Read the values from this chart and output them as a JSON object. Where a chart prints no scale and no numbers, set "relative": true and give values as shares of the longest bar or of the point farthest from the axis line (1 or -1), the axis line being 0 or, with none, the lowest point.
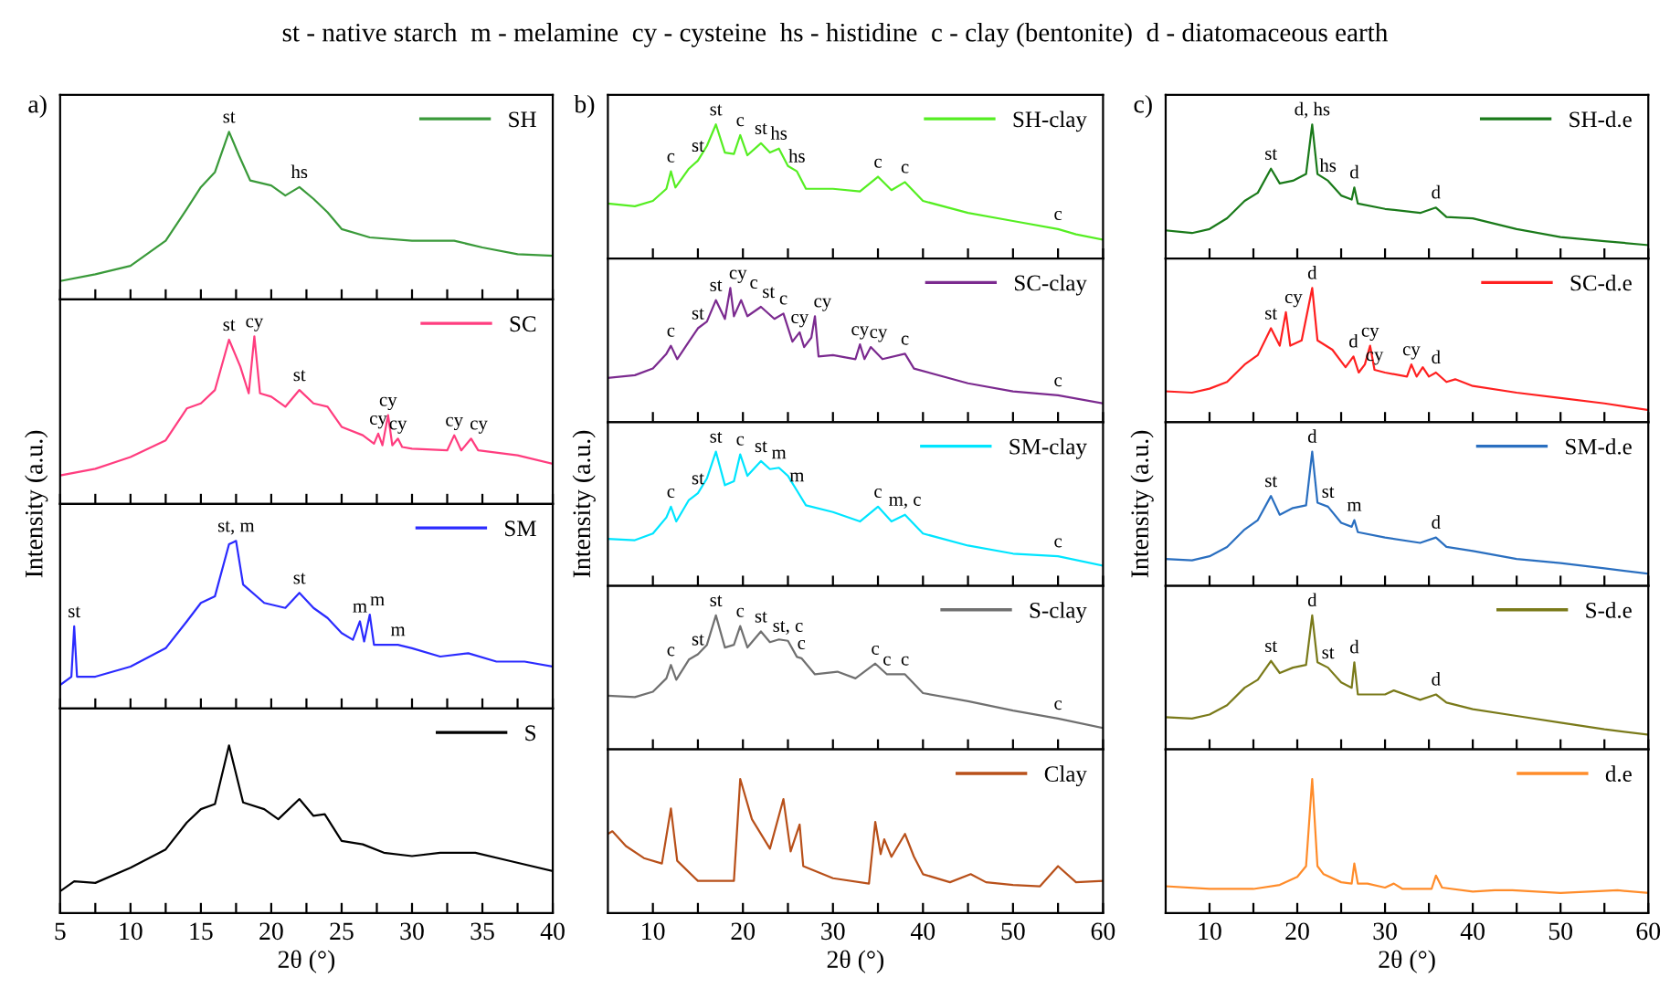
{
  "chart_data": [
    {
      "type": "line",
      "title": "st - native starch  m - melamine  cy - cysteine  hs - histidine  c - clay (bentonite)  d - diatomaceous earth",
      "relative": true,
      "tick_labels": false,
      "legend": "top right",
      "xlim": [
        5,
        40
      ],
      "xticks": [
        5,
        {
          "value": 7.5,
          "label": null
        },
        10,
        {
          "value": 12.5,
          "label": null
        },
        15,
        {
          "value": 17.5,
          "label": null
        },
        20,
        {
          "value": 22.5,
          "label": null
        },
        25,
        {
          "value": 27.5,
          "label": null
        },
        30,
        {
          "value": 32.5,
          "label": null
        },
        35,
        {
          "value": 37.5,
          "label": null
        },
        40
      ],
      "x": [
        5,
        7.5,
        10,
        12.5,
        14,
        15,
        16,
        17,
        17.7,
        18.5,
        20,
        21,
        22,
        23,
        24,
        25,
        27,
        30,
        33,
        35,
        37.5,
        40
      ],
      "series": [
        {
          "name": "SH",
          "color": "#3a9a3a",
          "values": [
            0.11,
            0.15,
            0.2,
            0.35,
            0.54,
            0.67,
            0.76,
            1.0,
            0.86,
            0.71,
            0.68,
            0.62,
            0.67,
            0.6,
            0.52,
            0.42,
            0.37,
            0.35,
            0.35,
            0.31,
            0.27,
            0.26
          ]
        }
      ],
      "annotations": [
        "a)",
        {
          "text": "st",
          "x": 17,
          "y": 1.0
        },
        {
          "text": "hs",
          "x": 22,
          "y": 0.67
        }
      ]
    },
    {
      "type": "line",
      "ylabel": "Intensity (a.u.)",
      "relative": true,
      "tick_labels": false,
      "legend": "top right",
      "xlim": [
        5,
        40
      ],
      "xticks": [
        5,
        {
          "value": 7.5,
          "label": null
        },
        10,
        {
          "value": 12.5,
          "label": null
        },
        15,
        {
          "value": 17.5,
          "label": null
        },
        20,
        {
          "value": 22.5,
          "label": null
        },
        25,
        {
          "value": 27.5,
          "label": null
        },
        30,
        {
          "value": 32.5,
          "label": null
        },
        35,
        {
          "value": 37.5,
          "label": null
        },
        40
      ],
      "x": [
        5,
        7.5,
        10,
        12.5,
        14,
        15,
        16,
        17,
        17.8,
        18.4,
        18.8,
        19.2,
        20,
        21,
        22,
        23,
        24,
        25,
        26.5,
        27.3,
        27.6,
        27.9,
        28.3,
        28.6,
        29,
        29.3,
        30,
        32.5,
        33,
        33.5,
        34.2,
        34.7,
        37.5,
        40
      ],
      "series": [
        {
          "name": "SC",
          "color": "#ff3d7f",
          "values": [
            0.17,
            0.21,
            0.28,
            0.38,
            0.57,
            0.6,
            0.68,
            0.98,
            0.82,
            0.66,
            1.0,
            0.66,
            0.64,
            0.58,
            0.68,
            0.6,
            0.58,
            0.46,
            0.41,
            0.36,
            0.42,
            0.35,
            0.53,
            0.35,
            0.39,
            0.34,
            0.33,
            0.32,
            0.41,
            0.32,
            0.39,
            0.32,
            0.29,
            0.24
          ]
        }
      ],
      "annotations": [
        {
          "text": "st",
          "x": 17,
          "y": 0.98
        },
        {
          "text": "cy",
          "x": 18.8,
          "y": 1.0
        },
        {
          "text": "st",
          "x": 22,
          "y": 0.68
        },
        {
          "text": "cy",
          "x": 27.6,
          "y": 0.42
        },
        {
          "text": "cy",
          "x": 28.3,
          "y": 0.53
        },
        {
          "text": "cy",
          "x": 29,
          "y": 0.39
        },
        {
          "text": "cy",
          "x": 33,
          "y": 0.41
        },
        {
          "text": "cy",
          "x": 34.2,
          "y": 0.39
        }
      ]
    },
    {
      "type": "line",
      "relative": true,
      "tick_labels": false,
      "legend": "top right",
      "xlim": [
        5,
        40
      ],
      "xticks": [
        5,
        {
          "value": 7.5,
          "label": null
        },
        10,
        {
          "value": 12.5,
          "label": null
        },
        15,
        {
          "value": 17.5,
          "label": null
        },
        20,
        {
          "value": 22.5,
          "label": null
        },
        25,
        {
          "value": 27.5,
          "label": null
        },
        30,
        {
          "value": 32.5,
          "label": null
        },
        35,
        {
          "value": 37.5,
          "label": null
        },
        40
      ],
      "x": [
        5,
        5.8,
        6,
        6.2,
        7.5,
        10,
        12.5,
        14,
        15,
        16,
        17,
        17.5,
        18,
        19.5,
        21,
        22,
        23,
        24,
        25,
        25.8,
        26.3,
        26.6,
        27,
        27.3,
        28.3,
        29,
        30,
        32,
        34,
        36,
        38,
        40
      ],
      "series": [
        {
          "name": "SM",
          "color": "#2b2bff",
          "values": [
            0.14,
            0.19,
            0.49,
            0.19,
            0.19,
            0.25,
            0.36,
            0.52,
            0.63,
            0.67,
            0.98,
            1.0,
            0.74,
            0.63,
            0.6,
            0.69,
            0.6,
            0.54,
            0.45,
            0.41,
            0.52,
            0.4,
            0.56,
            0.38,
            0.38,
            0.38,
            0.36,
            0.31,
            0.33,
            0.28,
            0.28,
            0.25
          ]
        }
      ],
      "annotations": [
        {
          "text": "st",
          "x": 6,
          "y": 0.49
        },
        {
          "text": "st, m",
          "x": 17.5,
          "y": 1.0
        },
        {
          "text": "st",
          "x": 22,
          "y": 0.69
        },
        {
          "text": "m",
          "x": 26.3,
          "y": 0.52
        },
        {
          "text": "m",
          "x": 27,
          "y": 0.56
        },
        {
          "text": "m",
          "x": 29,
          "y": 0.38
        }
      ]
    },
    {
      "type": "line",
      "xlabel": "2θ (°)",
      "relative": true,
      "tick_labels": "x",
      "legend": "top right",
      "xlim": [
        5,
        40
      ],
      "xticks": [
        5,
        {
          "value": 7.5,
          "label": null
        },
        10,
        {
          "value": 12.5,
          "label": null
        },
        15,
        {
          "value": 17.5,
          "label": null
        },
        20,
        {
          "value": 22.5,
          "label": null
        },
        25,
        {
          "value": 27.5,
          "label": null
        },
        30,
        {
          "value": 32.5,
          "label": null
        },
        35,
        {
          "value": 37.5,
          "label": null
        },
        40
      ],
      "x": [
        5,
        6,
        7.5,
        10,
        12.5,
        14,
        15,
        16,
        17,
        18,
        19.5,
        20.5,
        22,
        23,
        23.8,
        25,
        26.5,
        28,
        30,
        32,
        34.5,
        37,
        40
      ],
      "series": [
        {
          "name": "S",
          "color": "#000000",
          "values": [
            0.13,
            0.19,
            0.18,
            0.27,
            0.38,
            0.54,
            0.62,
            0.65,
            1.0,
            0.66,
            0.62,
            0.56,
            0.68,
            0.58,
            0.59,
            0.43,
            0.41,
            0.36,
            0.34,
            0.36,
            0.36,
            0.31,
            0.25
          ]
        }
      ]
    },
    {
      "type": "line",
      "relative": true,
      "tick_labels": false,
      "legend": "top right",
      "xlim": [
        5,
        60
      ],
      "xticks": [
        10,
        {
          "value": 15,
          "label": null
        },
        20,
        {
          "value": 25,
          "label": null
        },
        30,
        {
          "value": 35,
          "label": null
        },
        40,
        {
          "value": 45,
          "label": null
        },
        50,
        {
          "value": 55,
          "label": null
        },
        60
      ],
      "x": [
        5,
        8,
        10,
        11.5,
        12,
        12.5,
        14,
        15,
        16,
        17,
        18,
        19,
        19.7,
        20.5,
        22,
        23,
        24,
        25,
        26,
        27,
        30,
        33,
        35,
        36.5,
        38,
        40,
        45,
        50,
        55,
        57,
        60
      ],
      "series": [
        {
          "name": "SH-clay",
          "color": "#55ee22",
          "values": [
            0.41,
            0.39,
            0.43,
            0.52,
            0.65,
            0.53,
            0.67,
            0.73,
            0.84,
            1.0,
            0.79,
            0.78,
            0.92,
            0.77,
            0.86,
            0.79,
            0.82,
            0.69,
            0.65,
            0.52,
            0.52,
            0.5,
            0.61,
            0.51,
            0.57,
            0.43,
            0.34,
            0.28,
            0.22,
            0.18,
            0.14
          ]
        }
      ],
      "annotations": [
        "b)",
        {
          "text": "c",
          "x": 12,
          "y": 0.65
        },
        {
          "text": "st",
          "x": 15,
          "y": 0.73
        },
        {
          "text": "st",
          "x": 17,
          "y": 1.0
        },
        {
          "text": "c",
          "x": 19.7,
          "y": 0.92
        },
        {
          "text": "st",
          "x": 22,
          "y": 0.86
        },
        {
          "text": "hs",
          "x": 24,
          "y": 0.82
        },
        {
          "text": "hs",
          "x": 26,
          "y": 0.65
        },
        {
          "text": "c",
          "x": 35,
          "y": 0.61
        },
        {
          "text": "c",
          "x": 38,
          "y": 0.57
        },
        {
          "text": "c",
          "x": 55,
          "y": 0.22
        }
      ]
    },
    {
      "type": "line",
      "relative": true,
      "tick_labels": false,
      "legend": "top right",
      "xlim": [
        5,
        60
      ],
      "xticks": [
        10,
        {
          "value": 15,
          "label": null
        },
        20,
        {
          "value": 25,
          "label": null
        },
        30,
        {
          "value": 35,
          "label": null
        },
        40,
        {
          "value": 45,
          "label": null
        },
        50,
        {
          "value": 55,
          "label": null
        },
        60
      ],
      "x": [
        5,
        8,
        10,
        11.5,
        12,
        12.7,
        14,
        15,
        16,
        17,
        18,
        18.6,
        19,
        19.8,
        20.5,
        22,
        23.5,
        24.5,
        25.5,
        26.3,
        26.8,
        27.6,
        28,
        28.4,
        30,
        32.5,
        33,
        33.5,
        34.2,
        35.5,
        38,
        39,
        45,
        50,
        55,
        60
      ],
      "series": [
        {
          "name": "SC-clay",
          "color": "#7b2a8f",
          "values": [
            0.33,
            0.35,
            0.4,
            0.51,
            0.57,
            0.47,
            0.6,
            0.7,
            0.75,
            0.91,
            0.77,
            1.0,
            0.79,
            0.91,
            0.79,
            0.86,
            0.77,
            0.81,
            0.6,
            0.67,
            0.56,
            0.63,
            0.79,
            0.49,
            0.5,
            0.47,
            0.58,
            0.47,
            0.56,
            0.47,
            0.51,
            0.4,
            0.29,
            0.23,
            0.2,
            0.14
          ]
        }
      ],
      "annotations": [
        {
          "text": "c",
          "x": 12,
          "y": 0.57
        },
        {
          "text": "st",
          "x": 15,
          "y": 0.7
        },
        {
          "text": "st",
          "x": 17,
          "y": 0.91
        },
        {
          "text": "cy",
          "x": 18.6,
          "y": 1.0
        },
        {
          "text": "c",
          "x": 19.8,
          "y": 0.91
        },
        {
          "text": "st",
          "x": 22,
          "y": 0.86
        },
        {
          "text": "c",
          "x": 24.5,
          "y": 0.81
        },
        {
          "text": "cy",
          "x": 26.3,
          "y": 0.67
        },
        {
          "text": "cy",
          "x": 28,
          "y": 0.79
        },
        {
          "text": "cy",
          "x": 33,
          "y": 0.58
        },
        {
          "text": "cy",
          "x": 34.2,
          "y": 0.56
        },
        {
          "text": "c",
          "x": 38,
          "y": 0.51
        },
        {
          "text": "c",
          "x": 55,
          "y": 0.2
        }
      ]
    },
    {
      "type": "line",
      "ylabel": "Intensity (a.u.)",
      "relative": true,
      "tick_labels": false,
      "legend": "top right",
      "xlim": [
        5,
        60
      ],
      "xticks": [
        10,
        {
          "value": 15,
          "label": null
        },
        20,
        {
          "value": 25,
          "label": null
        },
        30,
        {
          "value": 35,
          "label": null
        },
        40,
        {
          "value": 45,
          "label": null
        },
        50,
        {
          "value": 55,
          "label": null
        },
        60
      ],
      "x": [
        5,
        8,
        10,
        11.5,
        12,
        12.6,
        14,
        15,
        16,
        17,
        18,
        19,
        19.7,
        20.5,
        22,
        23,
        24,
        25,
        26,
        27,
        30,
        33,
        35,
        36.5,
        38,
        40,
        45,
        50,
        55,
        60
      ],
      "series": [
        {
          "name": "SM-clay",
          "color": "#00e5ff",
          "values": [
            0.35,
            0.34,
            0.39,
            0.51,
            0.59,
            0.48,
            0.64,
            0.69,
            0.8,
            1.0,
            0.75,
            0.78,
            0.98,
            0.82,
            0.93,
            0.87,
            0.88,
            0.82,
            0.71,
            0.6,
            0.55,
            0.48,
            0.59,
            0.48,
            0.53,
            0.39,
            0.3,
            0.24,
            0.22,
            0.15
          ]
        }
      ],
      "annotations": [
        {
          "text": "c",
          "x": 12,
          "y": 0.59
        },
        {
          "text": "st",
          "x": 15,
          "y": 0.69
        },
        {
          "text": "st",
          "x": 17,
          "y": 1.0
        },
        {
          "text": "c",
          "x": 19.7,
          "y": 0.98
        },
        {
          "text": "st",
          "x": 22,
          "y": 0.93
        },
        {
          "text": "m",
          "x": 24,
          "y": 0.88
        },
        {
          "text": "m",
          "x": 26,
          "y": 0.71
        },
        {
          "text": "c",
          "x": 35,
          "y": 0.59
        },
        {
          "text": "m, c",
          "x": 38,
          "y": 0.53
        },
        {
          "text": "c",
          "x": 55,
          "y": 0.22
        }
      ]
    },
    {
      "type": "line",
      "relative": true,
      "tick_labels": false,
      "legend": "top right",
      "xlim": [
        5,
        60
      ],
      "xticks": [
        10,
        {
          "value": 15,
          "label": null
        },
        20,
        {
          "value": 25,
          "label": null
        },
        30,
        {
          "value": 35,
          "label": null
        },
        40,
        {
          "value": 45,
          "label": null
        },
        50,
        {
          "value": 55,
          "label": null
        },
        60
      ],
      "x": [
        5,
        8,
        10,
        11.5,
        12,
        12.6,
        14,
        15,
        16,
        17,
        18,
        19,
        19.7,
        20.5,
        22,
        23,
        24,
        25,
        26,
        26.5,
        28,
        30.5,
        32.5,
        34.7,
        36,
        38,
        40,
        45,
        50,
        55,
        60
      ],
      "series": [
        {
          "name": "S-clay",
          "color": "#707070",
          "values": [
            0.4,
            0.39,
            0.43,
            0.53,
            0.63,
            0.52,
            0.67,
            0.71,
            0.78,
            1.0,
            0.76,
            0.78,
            0.92,
            0.76,
            0.88,
            0.8,
            0.82,
            0.81,
            0.69,
            0.68,
            0.56,
            0.58,
            0.53,
            0.64,
            0.56,
            0.56,
            0.42,
            0.36,
            0.29,
            0.23,
            0.16
          ]
        }
      ],
      "annotations": [
        {
          "text": "c",
          "x": 12,
          "y": 0.63
        },
        {
          "text": "st",
          "x": 15,
          "y": 0.71
        },
        {
          "text": "st",
          "x": 17,
          "y": 1.0
        },
        {
          "text": "c",
          "x": 19.7,
          "y": 0.92
        },
        {
          "text": "st",
          "x": 22,
          "y": 0.88
        },
        {
          "text": "st, c",
          "x": 25,
          "y": 0.81
        },
        {
          "text": "c",
          "x": 26.5,
          "y": 0.68
        },
        {
          "text": "c",
          "x": 34.7,
          "y": 0.64
        },
        {
          "text": "c",
          "x": 36,
          "y": 0.56
        },
        {
          "text": "c",
          "x": 38,
          "y": 0.56
        },
        {
          "text": "c",
          "x": 55,
          "y": 0.23
        }
      ]
    },
    {
      "type": "line",
      "xlabel": "2θ (°)",
      "relative": true,
      "tick_labels": "x",
      "legend": "top right",
      "xlim": [
        5,
        60
      ],
      "xticks": [
        10,
        {
          "value": 15,
          "label": null
        },
        20,
        {
          "value": 25,
          "label": null
        },
        30,
        {
          "value": 35,
          "label": null
        },
        40,
        {
          "value": 45,
          "label": null
        },
        50,
        {
          "value": 55,
          "label": null
        },
        60
      ],
      "x": [
        5,
        5.5,
        7,
        9,
        11,
        12,
        12.7,
        15,
        17.5,
        19,
        19.7,
        21,
        23,
        24.5,
        25.3,
        26.3,
        26.7,
        30,
        34,
        34.7,
        35.3,
        35.7,
        36.5,
        38,
        39,
        40,
        43,
        45.3,
        47,
        50,
        53,
        55,
        57,
        60
      ],
      "series": [
        {
          "name": "Clay",
          "color": "#b8501a",
          "values": [
            0.59,
            0.61,
            0.5,
            0.41,
            0.37,
            0.78,
            0.39,
            0.24,
            0.24,
            0.24,
            1.0,
            0.7,
            0.48,
            0.85,
            0.46,
            0.66,
            0.35,
            0.26,
            0.22,
            0.68,
            0.44,
            0.55,
            0.42,
            0.59,
            0.42,
            0.29,
            0.23,
            0.29,
            0.23,
            0.21,
            0.2,
            0.35,
            0.23,
            0.24
          ]
        }
      ]
    },
    {
      "type": "line",
      "relative": true,
      "tick_labels": false,
      "legend": "top right",
      "xlim": [
        5,
        60
      ],
      "xticks": [
        10,
        {
          "value": 15,
          "label": null
        },
        20,
        {
          "value": 25,
          "label": null
        },
        30,
        {
          "value": 35,
          "label": null
        },
        40,
        {
          "value": 45,
          "label": null
        },
        50,
        {
          "value": 55,
          "label": null
        },
        60
      ],
      "x": [
        5,
        8,
        10,
        12,
        14,
        15.5,
        17,
        18,
        19.5,
        21,
        21.7,
        22.3,
        23.5,
        25,
        26.2,
        26.5,
        26.9,
        30,
        34,
        35.8,
        37,
        40,
        45,
        50,
        55,
        60
      ],
      "series": [
        {
          "name": "SH-d.e",
          "color": "#1a7a1a",
          "values": [
            0.21,
            0.19,
            0.22,
            0.3,
            0.43,
            0.49,
            0.67,
            0.56,
            0.58,
            0.63,
            1.0,
            0.63,
            0.58,
            0.47,
            0.44,
            0.53,
            0.41,
            0.37,
            0.34,
            0.38,
            0.31,
            0.3,
            0.22,
            0.16,
            0.13,
            0.1
          ]
        }
      ],
      "annotations": [
        "c)",
        {
          "text": "st",
          "x": 17,
          "y": 0.67
        },
        {
          "text": "d, hs",
          "x": 21.7,
          "y": 1.0
        },
        {
          "text": "hs",
          "x": 23.5,
          "y": 0.58
        },
        {
          "text": "d",
          "x": 26.5,
          "y": 0.53
        },
        {
          "text": "d",
          "x": 35.8,
          "y": 0.38
        }
      ]
    },
    {
      "type": "line",
      "relative": true,
      "tick_labels": false,
      "legend": "top right",
      "xlim": [
        5,
        60
      ],
      "xticks": [
        10,
        {
          "value": 15,
          "label": null
        },
        20,
        {
          "value": 25,
          "label": null
        },
        30,
        {
          "value": 35,
          "label": null
        },
        40,
        {
          "value": 45,
          "label": null
        },
        50,
        {
          "value": 55,
          "label": null
        },
        60
      ],
      "x": [
        5,
        8,
        10,
        12,
        14,
        15.5,
        17,
        18,
        18.7,
        19.2,
        20.5,
        21.7,
        22.3,
        24,
        25.5,
        26.4,
        27,
        27.7,
        28.3,
        28.8,
        30,
        32.5,
        33,
        33.6,
        34.3,
        35,
        35.8,
        37,
        38,
        40,
        45,
        50,
        55,
        60
      ],
      "series": [
        {
          "name": "SC-d.e",
          "color": "#ff2020",
          "values": [
            0.23,
            0.22,
            0.25,
            0.3,
            0.43,
            0.5,
            0.7,
            0.57,
            0.82,
            0.57,
            0.61,
            1.0,
            0.61,
            0.54,
            0.41,
            0.49,
            0.37,
            0.43,
            0.57,
            0.39,
            0.37,
            0.34,
            0.43,
            0.34,
            0.41,
            0.34,
            0.37,
            0.3,
            0.32,
            0.27,
            0.22,
            0.18,
            0.14,
            0.09
          ]
        }
      ],
      "annotations": [
        {
          "text": "st",
          "x": 17,
          "y": 0.7
        },
        {
          "text": "cy",
          "x": 18.7,
          "y": 0.82
        },
        {
          "text": "d",
          "x": 21.7,
          "y": 1.0
        },
        {
          "text": "d",
          "x": 26.4,
          "y": 0.49
        },
        {
          "text": "cy",
          "x": 28.3,
          "y": 0.57
        },
        {
          "text": "cy",
          "x": 28.8,
          "y": 0.39
        },
        {
          "text": "cy",
          "x": 33,
          "y": 0.43
        },
        {
          "text": "d",
          "x": 35.8,
          "y": 0.37
        }
      ]
    },
    {
      "type": "line",
      "ylabel": "Intensity (a.u.)",
      "relative": true,
      "tick_labels": false,
      "legend": "top right",
      "xlim": [
        5,
        60
      ],
      "xticks": [
        10,
        {
          "value": 15,
          "label": null
        },
        20,
        {
          "value": 25,
          "label": null
        },
        30,
        {
          "value": 35,
          "label": null
        },
        40,
        {
          "value": 45,
          "label": null
        },
        50,
        {
          "value": 55,
          "label": null
        },
        60
      ],
      "x": [
        5,
        8,
        10,
        12,
        14,
        15.5,
        17,
        18,
        19.5,
        21,
        21.7,
        22.3,
        23.5,
        25,
        26.2,
        26.5,
        26.9,
        30,
        34,
        35.8,
        37,
        40,
        45,
        50,
        55,
        60
      ],
      "series": [
        {
          "name": "SM-d.e",
          "color": "#2a6fc0",
          "values": [
            0.2,
            0.19,
            0.22,
            0.29,
            0.42,
            0.49,
            0.67,
            0.53,
            0.58,
            0.6,
            1.0,
            0.62,
            0.59,
            0.47,
            0.44,
            0.49,
            0.4,
            0.36,
            0.32,
            0.36,
            0.29,
            0.26,
            0.2,
            0.17,
            0.13,
            0.09
          ]
        }
      ],
      "annotations": [
        {
          "text": "st",
          "x": 17,
          "y": 0.67
        },
        {
          "text": "d",
          "x": 21.7,
          "y": 1.0
        },
        {
          "text": "st",
          "x": 23.5,
          "y": 0.59
        },
        {
          "text": "m",
          "x": 26.5,
          "y": 0.49
        },
        {
          "text": "d",
          "x": 35.8,
          "y": 0.36
        }
      ]
    },
    {
      "type": "line",
      "relative": true,
      "tick_labels": false,
      "legend": "top right",
      "xlim": [
        5,
        60
      ],
      "xticks": [
        10,
        {
          "value": 15,
          "label": null
        },
        20,
        {
          "value": 25,
          "label": null
        },
        30,
        {
          "value": 35,
          "label": null
        },
        40,
        {
          "value": 45,
          "label": null
        },
        50,
        {
          "value": 55,
          "label": null
        },
        60
      ],
      "x": [
        5,
        8,
        10,
        12,
        14,
        15.5,
        17,
        18,
        19.5,
        21,
        21.7,
        22.3,
        23.5,
        25,
        26.2,
        26.5,
        26.9,
        30,
        31,
        34,
        35.8,
        37,
        40,
        45,
        50,
        55,
        60
      ],
      "series": [
        {
          "name": "S-d.e",
          "color": "#7a7a1a",
          "values": [
            0.24,
            0.23,
            0.26,
            0.33,
            0.46,
            0.52,
            0.66,
            0.57,
            0.61,
            0.63,
            1.0,
            0.65,
            0.61,
            0.5,
            0.46,
            0.65,
            0.41,
            0.41,
            0.44,
            0.37,
            0.41,
            0.35,
            0.3,
            0.25,
            0.2,
            0.15,
            0.11
          ]
        }
      ],
      "annotations": [
        {
          "text": "st",
          "x": 17,
          "y": 0.66
        },
        {
          "text": "d",
          "x": 21.7,
          "y": 1.0
        },
        {
          "text": "st",
          "x": 23.5,
          "y": 0.61
        },
        {
          "text": "d",
          "x": 26.5,
          "y": 0.65
        },
        {
          "text": "d",
          "x": 35.8,
          "y": 0.41
        }
      ]
    },
    {
      "type": "line",
      "xlabel": "2θ (°)",
      "relative": true,
      "tick_labels": "x",
      "legend": "top right",
      "xlim": [
        5,
        60
      ],
      "xticks": [
        10,
        {
          "value": 15,
          "label": null
        },
        20,
        {
          "value": 25,
          "label": null
        },
        30,
        {
          "value": 35,
          "label": null
        },
        40,
        {
          "value": 45,
          "label": null
        },
        50,
        {
          "value": 55,
          "label": null
        },
        60
      ],
      "x": [
        5,
        10,
        15,
        18,
        20,
        21,
        21.7,
        22.3,
        23,
        25,
        26.2,
        26.5,
        26.9,
        28,
        30,
        31,
        32,
        35.3,
        35.8,
        36.5,
        40,
        42.5,
        44.5,
        50,
        56.5,
        60
      ],
      "series": [
        {
          "name": "d.e",
          "color": "#ff8c2a",
          "values": [
            0.2,
            0.18,
            0.18,
            0.21,
            0.27,
            0.35,
            1.0,
            0.35,
            0.29,
            0.23,
            0.22,
            0.37,
            0.22,
            0.22,
            0.19,
            0.22,
            0.18,
            0.18,
            0.28,
            0.19,
            0.16,
            0.17,
            0.17,
            0.15,
            0.17,
            0.15
          ]
        }
      ]
    }
  ]
}
